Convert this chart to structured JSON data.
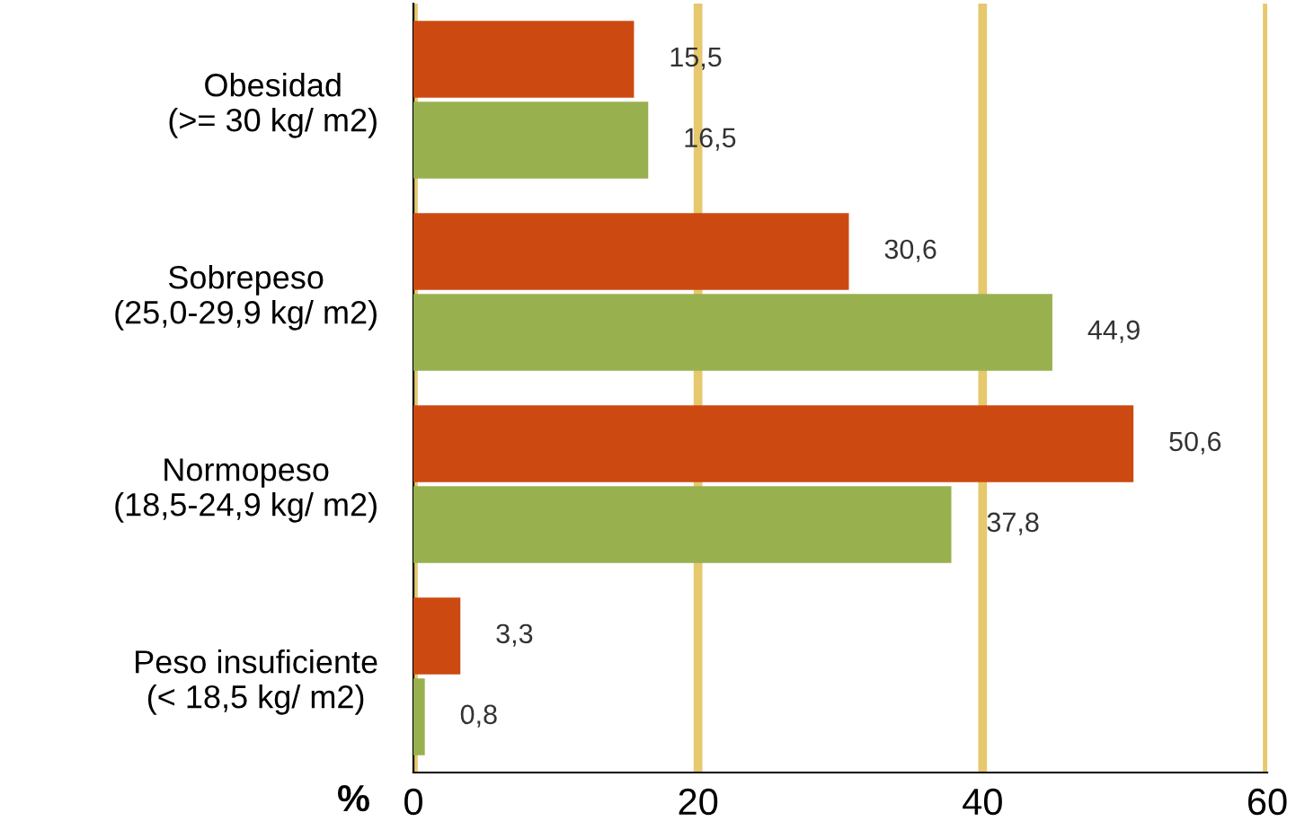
{
  "chart_data": {
    "type": "bar",
    "orientation": "horizontal",
    "xlabel": "%",
    "categories": [
      "Obesidad\n(>= 30 kg/ m2)",
      "Sobrepeso\n(25,0-29,9 kg/ m2)",
      "Normopeso\n(18,5-24,9 kg/ m2)",
      "Peso insuficiente\n(< 18,5 kg/ m2)"
    ],
    "series": [
      {
        "color": "#cc4a12",
        "values": [
          15.5,
          30.6,
          50.6,
          3.3
        ],
        "value_labels": [
          "15,5",
          "30,6",
          "50,6",
          "3,3"
        ]
      },
      {
        "color": "#99b04f",
        "values": [
          16.5,
          44.9,
          37.8,
          0.8
        ],
        "value_labels": [
          "16,5",
          "44,9",
          "37,8",
          "0,8"
        ]
      }
    ],
    "xlim": [
      0,
      60
    ],
    "xticks": [
      0,
      20,
      40,
      60
    ],
    "grid": "x",
    "legend": false
  }
}
